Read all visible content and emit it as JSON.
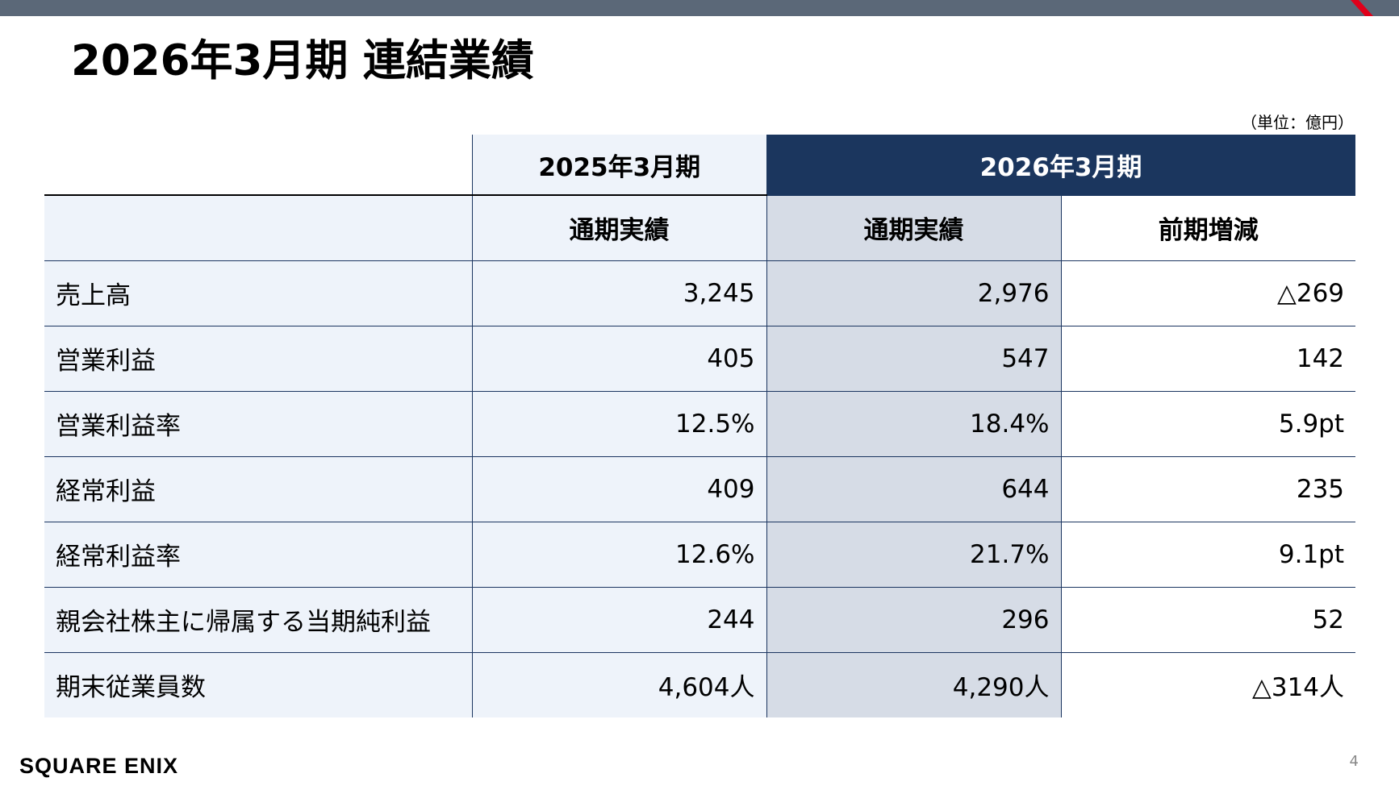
{
  "title": "2026年3月期 連結業績",
  "unit": "（単位：億円）",
  "table": {
    "header1": [
      "2025年3月期",
      "2026年3月期"
    ],
    "header2": [
      "通期実績",
      "通期実績",
      "前期増減"
    ],
    "rows": [
      {
        "label": "売上高",
        "prev": "3,245",
        "cur": "2,976",
        "diff": "△269"
      },
      {
        "label": "営業利益",
        "prev": "405",
        "cur": "547",
        "diff": "142"
      },
      {
        "label": "営業利益率",
        "prev": "12.5%",
        "cur": "18.4%",
        "diff": "5.9pt"
      },
      {
        "label": "経常利益",
        "prev": "409",
        "cur": "644",
        "diff": "235"
      },
      {
        "label": "経常利益率",
        "prev": "12.6%",
        "cur": "21.7%",
        "diff": "9.1pt"
      },
      {
        "label": "親会社株主に帰属する当期純利益",
        "prev": "244",
        "cur": "296",
        "diff": "52"
      },
      {
        "label": "期末従業員数",
        "prev": "4,604人",
        "cur": "4,290人",
        "diff": "△314人"
      }
    ]
  },
  "footer": {
    "logo": "SQUARE ENIX",
    "page_number": "4"
  },
  "colors": {
    "top_bar": "#5b6878",
    "header_dark": "#1b365e",
    "light_col": "#eef3fa",
    "current_col": "#d6dce6",
    "accent_red": "#e0001a"
  }
}
